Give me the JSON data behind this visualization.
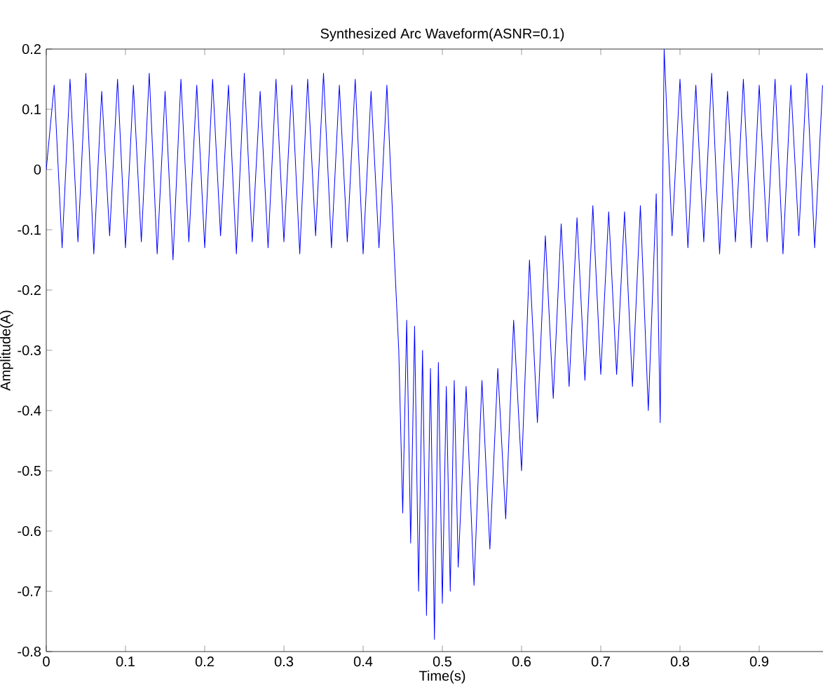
{
  "chart_data": {
    "type": "line",
    "title": "Synthesized Arc Waveform(ASNR=0.1)",
    "xlabel": "Time(s)",
    "ylabel": "Amplitude(A)",
    "xlim": [
      0,
      1
    ],
    "ylim": [
      -0.8,
      0.2
    ],
    "xticks": [
      0,
      0.1,
      0.2,
      0.3,
      0.4,
      0.5,
      0.6,
      0.7,
      0.8,
      0.9
    ],
    "yticks": [
      -0.8,
      -0.7,
      -0.6,
      -0.5,
      -0.4,
      -0.3,
      -0.2,
      -0.1,
      0,
      0.1,
      0.2
    ],
    "grid": false,
    "marker": "none",
    "line_style": "solid",
    "series": [
      {
        "color": "#0000ff",
        "x": [
          0,
          0.01,
          0.02,
          0.03,
          0.04,
          0.05,
          0.06,
          0.07,
          0.08,
          0.09,
          0.1,
          0.11,
          0.12,
          0.13,
          0.14,
          0.15,
          0.16,
          0.17,
          0.18,
          0.19,
          0.2,
          0.21,
          0.22,
          0.23,
          0.24,
          0.25,
          0.26,
          0.27,
          0.28,
          0.29,
          0.3,
          0.31,
          0.32,
          0.33,
          0.34,
          0.35,
          0.36,
          0.37,
          0.38,
          0.39,
          0.4,
          0.41,
          0.42,
          0.43,
          0.44,
          0.445,
          0.45,
          0.455,
          0.46,
          0.465,
          0.47,
          0.475,
          0.48,
          0.485,
          0.49,
          0.495,
          0.5,
          0.505,
          0.51,
          0.515,
          0.52,
          0.53,
          0.54,
          0.55,
          0.56,
          0.57,
          0.58,
          0.59,
          0.6,
          0.61,
          0.62,
          0.63,
          0.64,
          0.65,
          0.66,
          0.67,
          0.68,
          0.69,
          0.7,
          0.71,
          0.72,
          0.73,
          0.74,
          0.75,
          0.76,
          0.77,
          0.775,
          0.78,
          0.79,
          0.8,
          0.81,
          0.82,
          0.83,
          0.84,
          0.85,
          0.86,
          0.87,
          0.88,
          0.89,
          0.9,
          0.91,
          0.92,
          0.93,
          0.94,
          0.95,
          0.96,
          0.97,
          0.98
        ],
        "values": [
          0,
          0.14,
          -0.13,
          0.15,
          -0.12,
          0.16,
          -0.14,
          0.13,
          -0.11,
          0.15,
          -0.13,
          0.14,
          -0.12,
          0.16,
          -0.14,
          0.13,
          -0.15,
          0.15,
          -0.12,
          0.14,
          -0.13,
          0.15,
          -0.11,
          0.14,
          -0.14,
          0.16,
          -0.12,
          0.13,
          -0.13,
          0.15,
          -0.12,
          0.14,
          -0.14,
          0.15,
          -0.11,
          0.16,
          -0.13,
          0.14,
          -0.12,
          0.15,
          -0.14,
          0.13,
          -0.13,
          0.14,
          -0.16,
          -0.3,
          -0.57,
          -0.25,
          -0.62,
          -0.26,
          -0.7,
          -0.3,
          -0.74,
          -0.33,
          -0.78,
          -0.32,
          -0.72,
          -0.36,
          -0.7,
          -0.35,
          -0.66,
          -0.36,
          -0.69,
          -0.35,
          -0.63,
          -0.33,
          -0.58,
          -0.25,
          -0.5,
          -0.15,
          -0.42,
          -0.11,
          -0.38,
          -0.09,
          -0.36,
          -0.08,
          -0.35,
          -0.06,
          -0.34,
          -0.07,
          -0.34,
          -0.07,
          -0.36,
          -0.06,
          -0.4,
          -0.04,
          -0.42,
          0.2,
          -0.11,
          0.15,
          -0.13,
          0.14,
          -0.12,
          0.16,
          -0.14,
          0.13,
          -0.12,
          0.15,
          -0.13,
          0.14,
          -0.12,
          0.15,
          -0.14,
          0.14,
          -0.11,
          0.16,
          -0.13,
          0.14
        ]
      }
    ]
  }
}
